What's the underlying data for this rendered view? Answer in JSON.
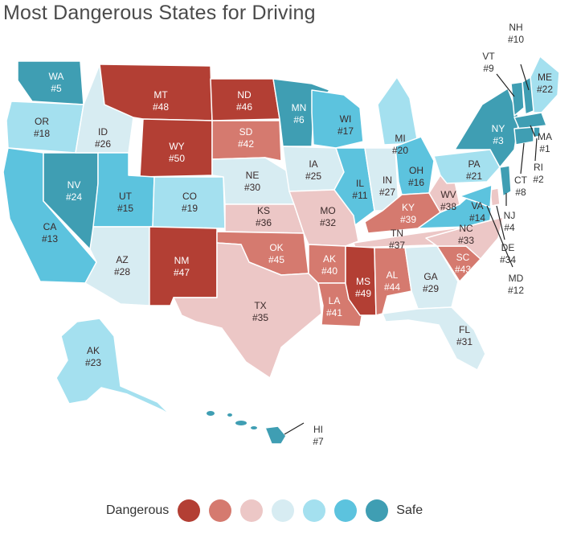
{
  "title": "Most Dangerous States for Driving",
  "palette": [
    "#b33f34",
    "#d57a6f",
    "#ecc7c6",
    "#d7ecf2",
    "#a4e0ef",
    "#5cc3de",
    "#3f9eb3"
  ],
  "legend": {
    "dangerous": "Dangerous",
    "safe": "Safe"
  },
  "states": [
    {
      "abbr": "WA",
      "rank": "#5",
      "tier": 6
    },
    {
      "abbr": "OR",
      "rank": "#18",
      "tier": 4
    },
    {
      "abbr": "CA",
      "rank": "#13",
      "tier": 5
    },
    {
      "abbr": "NV",
      "rank": "#24",
      "tier": 6
    },
    {
      "abbr": "ID",
      "rank": "#26",
      "tier": 3
    },
    {
      "abbr": "MT",
      "rank": "#48",
      "tier": 0
    },
    {
      "abbr": "WY",
      "rank": "#50",
      "tier": 0
    },
    {
      "abbr": "UT",
      "rank": "#15",
      "tier": 5
    },
    {
      "abbr": "AZ",
      "rank": "#28",
      "tier": 3
    },
    {
      "abbr": "CO",
      "rank": "#19",
      "tier": 4
    },
    {
      "abbr": "NM",
      "rank": "#47",
      "tier": 0
    },
    {
      "abbr": "ND",
      "rank": "#46",
      "tier": 0
    },
    {
      "abbr": "SD",
      "rank": "#42",
      "tier": 1
    },
    {
      "abbr": "NE",
      "rank": "#30",
      "tier": 3
    },
    {
      "abbr": "KS",
      "rank": "#36",
      "tier": 2
    },
    {
      "abbr": "OK",
      "rank": "#45",
      "tier": 1
    },
    {
      "abbr": "TX",
      "rank": "#35",
      "tier": 2
    },
    {
      "abbr": "MN",
      "rank": "#6",
      "tier": 6
    },
    {
      "abbr": "IA",
      "rank": "#25",
      "tier": 3
    },
    {
      "abbr": "MO",
      "rank": "#32",
      "tier": 2
    },
    {
      "abbr": "AK",
      "rank": "#40",
      "tier": 1
    },
    {
      "abbr": "LA",
      "rank": "#41",
      "tier": 1
    },
    {
      "abbr": "WI",
      "rank": "#17",
      "tier": 5
    },
    {
      "abbr": "IL",
      "rank": "#11",
      "tier": 5
    },
    {
      "abbr": "MI",
      "rank": "#20",
      "tier": 4
    },
    {
      "abbr": "IN",
      "rank": "#27",
      "tier": 3
    },
    {
      "abbr": "OH",
      "rank": "#16",
      "tier": 5
    },
    {
      "abbr": "KY",
      "rank": "#39",
      "tier": 1
    },
    {
      "abbr": "TN",
      "rank": "#37",
      "tier": 2
    },
    {
      "abbr": "MS",
      "rank": "#49",
      "tier": 0
    },
    {
      "abbr": "AL",
      "rank": "#44",
      "tier": 1
    },
    {
      "abbr": "GA",
      "rank": "#29",
      "tier": 3
    },
    {
      "abbr": "FL",
      "rank": "#31",
      "tier": 3
    },
    {
      "abbr": "SC",
      "rank": "#43",
      "tier": 1
    },
    {
      "abbr": "NC",
      "rank": "#33",
      "tier": 2
    },
    {
      "abbr": "VA",
      "rank": "#14",
      "tier": 5
    },
    {
      "abbr": "WV",
      "rank": "#38",
      "tier": 2
    },
    {
      "abbr": "PA",
      "rank": "#21",
      "tier": 4
    },
    {
      "abbr": "NY",
      "rank": "#3",
      "tier": 6
    },
    {
      "abbr": "ME",
      "rank": "#22",
      "tier": 4
    },
    {
      "abbr": "VT",
      "rank": "#9",
      "tier": 6
    },
    {
      "abbr": "NH",
      "rank": "#10",
      "tier": 6
    },
    {
      "abbr": "MA",
      "rank": "#1",
      "tier": 6
    },
    {
      "abbr": "RI",
      "rank": "#2",
      "tier": 6
    },
    {
      "abbr": "CT",
      "rank": "#8",
      "tier": 6
    },
    {
      "abbr": "NJ",
      "rank": "#4",
      "tier": 6
    },
    {
      "abbr": "DE",
      "rank": "#34",
      "tier": 2
    },
    {
      "abbr": "MD",
      "rank": "#12",
      "tier": 5
    },
    {
      "abbr": "AK",
      "rank": "#23",
      "tier": 4
    },
    {
      "abbr": "HI",
      "rank": "#7",
      "tier": 6
    }
  ]
}
